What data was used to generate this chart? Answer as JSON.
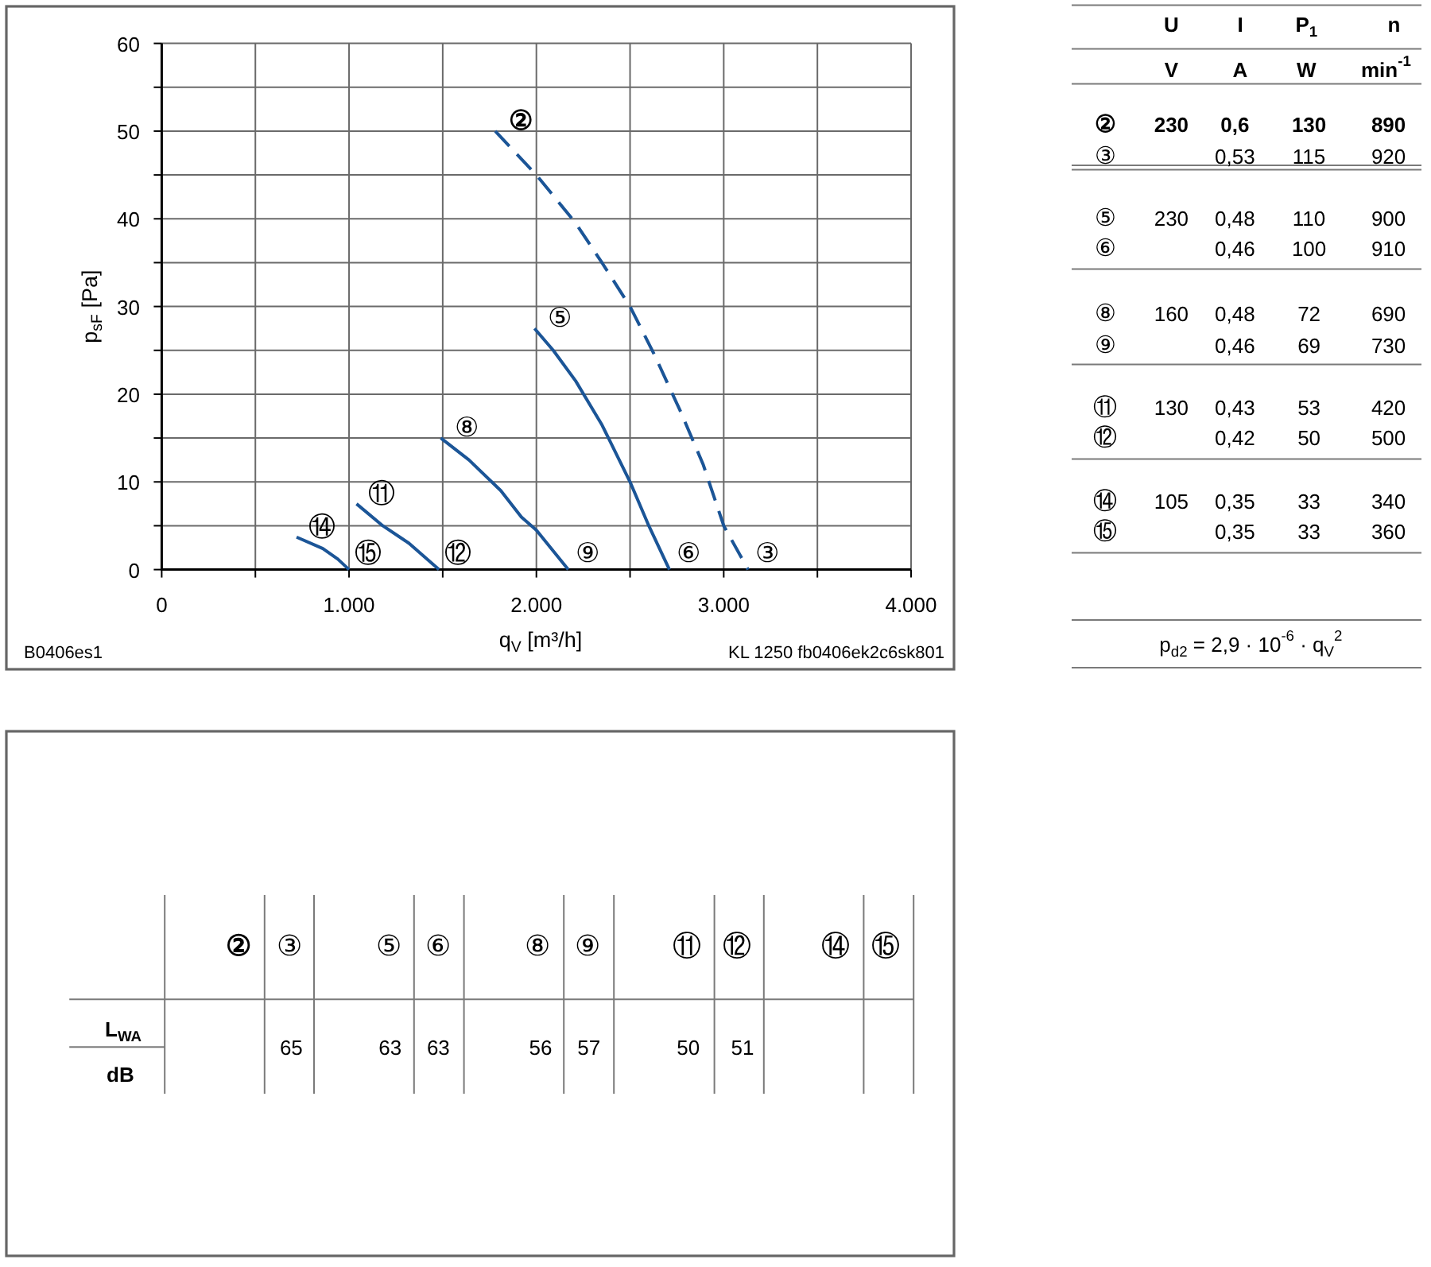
{
  "chart_data": {
    "type": "line",
    "xlabel": "q$_{V}$ [m³/h]",
    "ylabel": "p$_{sF}$ [Pa]",
    "xlim": [
      0,
      4000
    ],
    "ylim": [
      0,
      60
    ],
    "xticks": [
      0,
      {
        "value": 500,
        "label": null
      },
      {
        "value": 1000,
        "label": "1.000"
      },
      {
        "value": 1500,
        "label": null
      },
      {
        "value": 2000,
        "label": "2.000"
      },
      {
        "value": 2500,
        "label": null
      },
      {
        "value": 3000,
        "label": "3.000"
      },
      {
        "value": 3500,
        "label": null
      },
      {
        "value": 4000,
        "label": "4.000"
      }
    ],
    "yticks": [
      0,
      {
        "value": 5,
        "label": null
      },
      10,
      {
        "value": 15,
        "label": null
      },
      20,
      {
        "value": 25,
        "label": null
      },
      30,
      {
        "value": 35,
        "label": null
      },
      40,
      {
        "value": 45,
        "label": null
      },
      50,
      {
        "value": 55,
        "label": null
      },
      60
    ],
    "grid": true,
    "series": [
      {
        "color": "#1b5597",
        "line_style": "dashed",
        "x": [
          1780,
          2000,
          2210,
          2350,
          2500,
          2630,
          2770,
          2890,
          3000,
          3130
        ],
        "values": [
          50,
          45,
          39.5,
          35,
          30,
          24.5,
          18,
          12,
          5,
          0
        ]
      },
      {
        "color": "#1b5597",
        "x": [
          1990,
          2090,
          2210,
          2350,
          2500,
          2600,
          2710
        ],
        "values": [
          27.5,
          25,
          21.5,
          16.5,
          10,
          5,
          0
        ]
      },
      {
        "color": "#1b5597",
        "x": [
          1490,
          1640,
          1810,
          1920,
          2000,
          2170
        ],
        "values": [
          15,
          12.5,
          9,
          6,
          4.5,
          0
        ]
      },
      {
        "color": "#1b5597",
        "x": [
          1040,
          1180,
          1320,
          1480
        ],
        "values": [
          7.5,
          5,
          3,
          0
        ]
      },
      {
        "color": "#1b5597",
        "x": [
          720,
          860,
          940,
          1000
        ],
        "values": [
          3.7,
          2.4,
          1.2,
          0
        ]
      }
    ],
    "annotations": [
      {
        "text": "②",
        "x": 1780,
        "y": 50
      },
      {
        "text": "③",
        "x": 3130,
        "y": 0
      },
      {
        "text": "⑤",
        "x": 1990,
        "y": 27.5
      },
      {
        "text": "⑥",
        "x": 2710,
        "y": 0
      },
      {
        "text": "⑧",
        "x": 1490,
        "y": 15
      },
      {
        "text": "⑨",
        "x": 2170,
        "y": 0
      },
      {
        "text": "⑪",
        "x": 1040,
        "y": 7.5
      },
      {
        "text": "⑫",
        "x": 1480,
        "y": 0
      },
      {
        "text": "⑭",
        "x": 720,
        "y": 3.7
      },
      {
        "text": "⑮",
        "x": 1000,
        "y": 0
      },
      "B0406es1",
      "KL 1250 fb0406ek2c6sk801",
      "U",
      "I",
      "P$_{1}$",
      "n",
      "V",
      "A",
      "W",
      "min$^{-1}$",
      "②",
      "230",
      "0,6",
      "130",
      "890",
      "③",
      "0,53",
      "115",
      "920",
      "⑤",
      "230",
      "0,48",
      "110",
      "900",
      "⑥",
      "0,46",
      "100",
      "910",
      "⑧",
      "160",
      "0,48",
      "72",
      "690",
      "⑨",
      "0,46",
      "69",
      "730",
      "⑪",
      "130",
      "0,43",
      "53",
      "420",
      "⑫",
      "0,42",
      "50",
      "500",
      "⑭",
      "105",
      "0,35",
      "33",
      "340",
      "⑮",
      "0,35",
      "33",
      "360",
      "p$_{d2}$ = 2,9 · 10$^{-6}$ · q$_{V}$$^{2}$",
      "②",
      "③",
      "⑤",
      "⑥",
      "⑧",
      "⑨",
      "⑪",
      "⑫",
      "⑭",
      "⑮",
      "L$_{WA}$",
      "dB",
      "65",
      "63",
      "63",
      "56",
      "57",
      "50",
      "51"
    ]
  }
}
